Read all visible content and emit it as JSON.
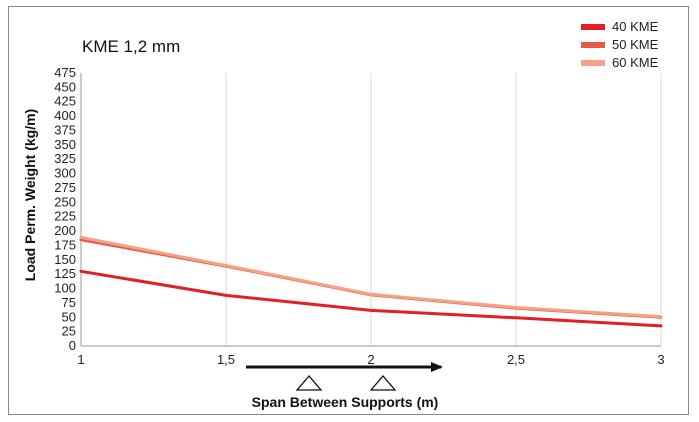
{
  "chart_data": {
    "type": "line",
    "title": "KME 1,2 mm",
    "xlabel": "Span Between Supports (m)",
    "ylabel": "Load Perm. Weight (kg/m)",
    "xlim": [
      1,
      3
    ],
    "ylim": [
      0,
      475
    ],
    "x_ticks": [
      1,
      1.5,
      2,
      2.5,
      3
    ],
    "x_tick_labels": [
      "1",
      "1,5",
      "2",
      "2,5",
      "3"
    ],
    "y_ticks": [
      0,
      25,
      50,
      75,
      100,
      125,
      150,
      175,
      200,
      225,
      250,
      275,
      300,
      325,
      350,
      375,
      400,
      425,
      450,
      475
    ],
    "y_tick_labels": [
      "0",
      "25",
      "50",
      "75",
      "100",
      "125",
      "150",
      "175",
      "200",
      "225",
      "250",
      "275",
      "300",
      "325",
      "350",
      "375",
      "400",
      "425",
      "450",
      "475"
    ],
    "grid": "vertical",
    "legend_position": "top-right",
    "series": [
      {
        "name": "40 KME",
        "color": "#e31e24",
        "x": [
          1,
          1.5,
          2,
          2.5,
          3
        ],
        "values": [
          130,
          88,
          62,
          49,
          35
        ]
      },
      {
        "name": "50 KME",
        "color": "#ea5a43",
        "x": [
          1,
          1.5,
          2,
          2.5,
          3
        ],
        "values": [
          185,
          139,
          89,
          66,
          50
        ]
      },
      {
        "name": "60 KME",
        "color": "#f4a185",
        "x": [
          1,
          1.5,
          2,
          2.5,
          3
        ],
        "values": [
          189,
          140,
          90,
          67,
          51
        ]
      }
    ]
  }
}
